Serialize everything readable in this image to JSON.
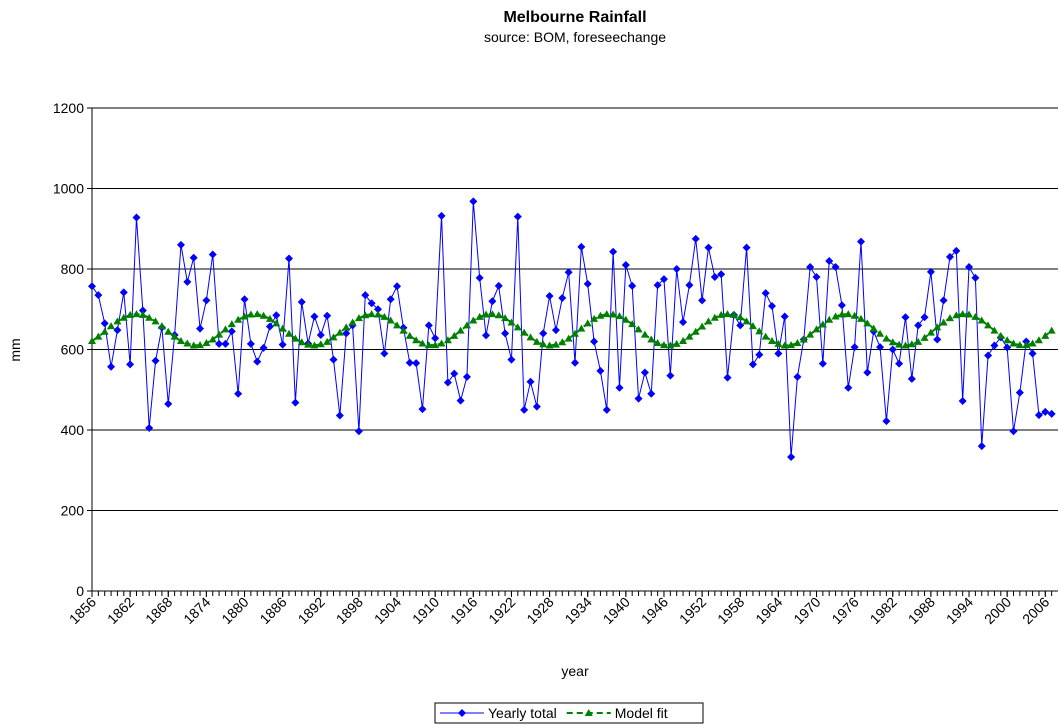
{
  "chart_data": {
    "type": "line",
    "title": "Melbourne Rainfall",
    "subtitle": "source: BOM, foreseechange",
    "x_label": "year",
    "y_label": "mm",
    "x": [
      1856,
      1857,
      1858,
      1859,
      1860,
      1861,
      1862,
      1863,
      1864,
      1865,
      1866,
      1867,
      1868,
      1869,
      1870,
      1871,
      1872,
      1873,
      1874,
      1875,
      1876,
      1877,
      1878,
      1879,
      1880,
      1881,
      1882,
      1883,
      1884,
      1885,
      1886,
      1887,
      1888,
      1889,
      1890,
      1891,
      1892,
      1893,
      1894,
      1895,
      1896,
      1897,
      1898,
      1899,
      1900,
      1901,
      1902,
      1903,
      1904,
      1905,
      1906,
      1907,
      1908,
      1909,
      1910,
      1911,
      1912,
      1913,
      1914,
      1915,
      1916,
      1917,
      1918,
      1919,
      1920,
      1921,
      1922,
      1923,
      1924,
      1925,
      1926,
      1927,
      1928,
      1929,
      1930,
      1931,
      1932,
      1933,
      1934,
      1935,
      1936,
      1937,
      1938,
      1939,
      1940,
      1941,
      1942,
      1943,
      1944,
      1945,
      1946,
      1947,
      1948,
      1949,
      1950,
      1951,
      1952,
      1953,
      1954,
      1955,
      1956,
      1957,
      1958,
      1959,
      1960,
      1961,
      1962,
      1963,
      1964,
      1965,
      1966,
      1967,
      1968,
      1969,
      1970,
      1971,
      1972,
      1973,
      1974,
      1975,
      1976,
      1977,
      1978,
      1979,
      1980,
      1981,
      1982,
      1983,
      1984,
      1985,
      1986,
      1987,
      1988,
      1989,
      1990,
      1991,
      1992,
      1993,
      1994,
      1995,
      1996,
      1997,
      1998,
      1999,
      2000,
      2001,
      2002,
      2003,
      2004,
      2005,
      2006,
      2007
    ],
    "series": [
      {
        "name": "Yearly total",
        "color": "#0000ff",
        "marker": "diamond",
        "dashed": false,
        "values": [
          757,
          735,
          665,
          557,
          648,
          742,
          563,
          928,
          697,
          405,
          572,
          655,
          465,
          636,
          860,
          768,
          828,
          652,
          722,
          836,
          614,
          614,
          645,
          490,
          725,
          614,
          570,
          604,
          657,
          685,
          612,
          826,
          468,
          718,
          615,
          682,
          636,
          684,
          575,
          436,
          640,
          660,
          397,
          735,
          715,
          700,
          590,
          725,
          757,
          654,
          567,
          566,
          452,
          660,
          628,
          932,
          518,
          540,
          473,
          532,
          968,
          778,
          635,
          720,
          758,
          640,
          575,
          930,
          450,
          520,
          458,
          640,
          733,
          648,
          728,
          792,
          567,
          855,
          763,
          620,
          547,
          450,
          843,
          505,
          810,
          758,
          478,
          543,
          490,
          760,
          775,
          535,
          800,
          668,
          760,
          875,
          722,
          853,
          780,
          787,
          530,
          686,
          660,
          853,
          563,
          587,
          740,
          708,
          590,
          682,
          333,
          532,
          625,
          805,
          780,
          565,
          820,
          805,
          710,
          505,
          606,
          868,
          543,
          645,
          606,
          422,
          600,
          565,
          680,
          527,
          660,
          680,
          793,
          625,
          722,
          830,
          845,
          472,
          805,
          778,
          360,
          585,
          610,
          630,
          605,
          397,
          493,
          620,
          590,
          437,
          445,
          440
        ]
      },
      {
        "name": "Model fit",
        "color": "#008000",
        "marker": "triangle",
        "dashed": true,
        "values": [
          621,
          632,
          644,
          658,
          670,
          679,
          686,
          688,
          686,
          679,
          670,
          658,
          644,
          632,
          621,
          615,
          610,
          611,
          616,
          625,
          637,
          650,
          663,
          674,
          682,
          687,
          688,
          684,
          676,
          665,
          652,
          639,
          627,
          618,
          612,
          610,
          613,
          619,
          630,
          642,
          655,
          667,
          678,
          685,
          688,
          687,
          681,
          672,
          660,
          647,
          634,
          623,
          615,
          611,
          611,
          615,
          623,
          634,
          647,
          660,
          672,
          681,
          687,
          688,
          685,
          678,
          667,
          655,
          642,
          630,
          619,
          613,
          610,
          612,
          618,
          627,
          639,
          652,
          665,
          676,
          684,
          688,
          687,
          683,
          674,
          663,
          650,
          637,
          625,
          616,
          611,
          610,
          614,
          621,
          632,
          644,
          657,
          670,
          679,
          686,
          688,
          686,
          680,
          670,
          658,
          645,
          632,
          621,
          614,
          610,
          611,
          616,
          625,
          637,
          650,
          662,
          674,
          682,
          687,
          688,
          684,
          676,
          665,
          652,
          639,
          627,
          618,
          612,
          610,
          613,
          619,
          629,
          642,
          655,
          667,
          678,
          685,
          688,
          687,
          681,
          672,
          660,
          647,
          634,
          623,
          615,
          611,
          611,
          615,
          623,
          634,
          647
        ]
      }
    ],
    "xlim": [
      1856,
      2008
    ],
    "xticks": [
      1856,
      1862,
      1868,
      1874,
      1880,
      1886,
      1892,
      1898,
      1904,
      1910,
      1916,
      1922,
      1928,
      1934,
      1940,
      1946,
      1952,
      1958,
      1964,
      1970,
      1976,
      1982,
      1988,
      1994,
      2000,
      2006
    ],
    "ylim": [
      0,
      1200
    ],
    "yticks": [
      0,
      200,
      400,
      600,
      800,
      1000,
      1200
    ],
    "grid": true,
    "legend": "bottom"
  }
}
